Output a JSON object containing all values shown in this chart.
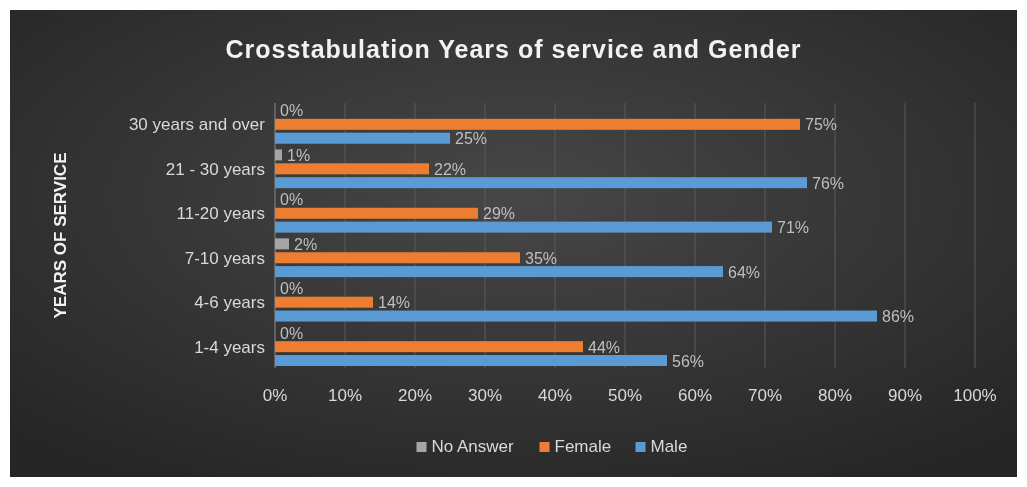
{
  "chart_data": {
    "type": "bar",
    "orientation": "horizontal",
    "title": "Crosstabulation Years of service and Gender",
    "ylabel": "YEARS OF SERVICE",
    "categories": [
      "30 years and over",
      "21 - 30 years",
      "11-20 years",
      "7-10 years",
      "4-6 years",
      "1-4 years"
    ],
    "series": [
      {
        "name": "No Answer",
        "color": "#a5a5a5",
        "values": [
          0,
          1,
          0,
          2,
          0,
          0
        ],
        "value_labels": [
          "0%",
          "1%",
          "0%",
          "2%",
          "0%",
          "0%"
        ]
      },
      {
        "name": "Female",
        "color": "#ed7d31",
        "values": [
          75,
          22,
          29,
          35,
          14,
          44
        ],
        "value_labels": [
          "75%",
          "22%",
          "29%",
          "35%",
          "14%",
          "44%"
        ]
      },
      {
        "name": "Male",
        "color": "#5b9bd5",
        "values": [
          25,
          76,
          71,
          64,
          86,
          56
        ],
        "value_labels": [
          "25%",
          "76%",
          "71%",
          "64%",
          "86%",
          "56%"
        ]
      }
    ],
    "xlim": [
      0,
      100
    ],
    "xticks": [
      {
        "value": 0,
        "label": "0%"
      },
      {
        "value": 10,
        "label": "10%"
      },
      {
        "value": 20,
        "label": "20%"
      },
      {
        "value": 30,
        "label": "30%"
      },
      {
        "value": 40,
        "label": "40%"
      },
      {
        "value": 50,
        "label": "50%"
      },
      {
        "value": 60,
        "label": "60%"
      },
      {
        "value": 70,
        "label": "70%"
      },
      {
        "value": 80,
        "label": "80%"
      },
      {
        "value": 90,
        "label": "90%"
      },
      {
        "value": 100,
        "label": "100%"
      }
    ],
    "grid": "x",
    "legend": "bottom"
  }
}
